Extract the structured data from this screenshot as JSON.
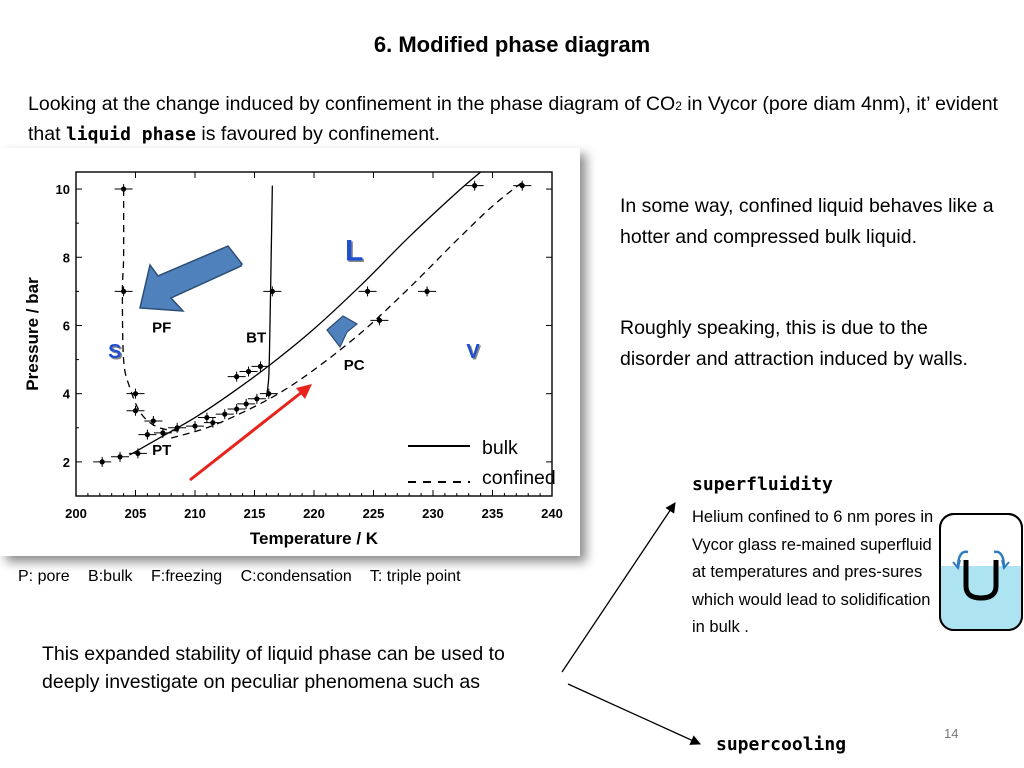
{
  "slide": {
    "title": "6. Modified phase diagram",
    "intro_before": "Looking at the change induced by confinement in the phase diagram of CO",
    "intro_sub": "2",
    "intro_mid": " in Vycor (pore diam 4nm), it’ evident that ",
    "intro_bold": "liquid phase",
    "intro_after": " is favoured by  confinement.",
    "right_para1": "In some way, confined liquid behaves like a hotter and compressed bulk liquid.",
    "right_para2": "Roughly speaking, this is due to the disorder and attraction induced by walls.",
    "bottom_para": "This expanded stability of liquid phase can be used to deeply investigate on peculiar phenomena such as",
    "superfluidity_title": "superfluidity",
    "superfluidity_text": "Helium confined to 6 nm pores in Vycor glass re-mained superfluid at temperatures and pres-sures which would lead to solidification in bulk .",
    "supercooling_title": "supercooling",
    "page_number": "14",
    "caption": [
      "P: pore",
      "B:bulk",
      "F:freezing",
      "C:condensation",
      "T: triple point"
    ]
  },
  "chart_data": {
    "type": "scatter",
    "xlabel": "Temperature / K",
    "ylabel": "Pressure / bar",
    "xlim": [
      200,
      240
    ],
    "ylim": [
      1,
      10.5
    ],
    "x_ticks": [
      200,
      205,
      210,
      215,
      220,
      225,
      230,
      235,
      240
    ],
    "y_ticks": [
      2,
      4,
      6,
      8,
      10
    ],
    "region_labels": [
      "S",
      "L",
      "V"
    ],
    "point_labels": [
      "PF",
      "BT",
      "PC",
      "PT"
    ],
    "legend": [
      "bulk",
      "confined"
    ],
    "series": [
      {
        "name": "bulk",
        "style": "solid",
        "points": [
          [
            204.5,
            2.2
          ],
          [
            207,
            2.7
          ],
          [
            210,
            3.3
          ],
          [
            213,
            4.0
          ],
          [
            216.5,
            4.9
          ],
          [
            220,
            5.9
          ],
          [
            224,
            7.2
          ],
          [
            228,
            8.6
          ],
          [
            232,
            9.9
          ],
          [
            234,
            10.5
          ]
        ]
      },
      {
        "name": "confined",
        "style": "dashed",
        "points": [
          [
            208,
            2.7
          ],
          [
            211,
            3.0
          ],
          [
            214,
            3.45
          ],
          [
            217,
            4.0
          ],
          [
            220,
            4.7
          ],
          [
            224,
            5.8
          ],
          [
            228,
            7.1
          ],
          [
            232,
            8.5
          ],
          [
            235,
            9.5
          ],
          [
            237.5,
            10.2
          ]
        ]
      },
      {
        "name": "PF",
        "style": "dashed",
        "points": [
          [
            204,
            10
          ],
          [
            204,
            8
          ],
          [
            203.9,
            7
          ],
          [
            204,
            5
          ],
          [
            204.5,
            4.2
          ],
          [
            205.5,
            3.4
          ],
          [
            207,
            3.0
          ],
          [
            209,
            2.9
          ]
        ]
      },
      {
        "name": "BT",
        "style": "solid",
        "points": [
          [
            216,
            3.9
          ],
          [
            216.2,
            4.5
          ],
          [
            216.3,
            6
          ],
          [
            216.4,
            8
          ],
          [
            216.5,
            10.1
          ]
        ]
      },
      {
        "name": "data",
        "points": [
          [
            202.2,
            2.0
          ],
          [
            203.7,
            2.15
          ],
          [
            205.2,
            2.25
          ],
          [
            206,
            2.8
          ],
          [
            207.3,
            2.85
          ],
          [
            208.5,
            3.0
          ],
          [
            210,
            3.05
          ],
          [
            211.5,
            3.15
          ],
          [
            212.5,
            3.4
          ],
          [
            213.5,
            3.55
          ],
          [
            214.3,
            3.7
          ],
          [
            215.2,
            3.85
          ],
          [
            216.2,
            4.0
          ],
          [
            213.5,
            4.5
          ],
          [
            214.5,
            4.65
          ],
          [
            215.5,
            4.8
          ],
          [
            204,
            7.0
          ],
          [
            204,
            10.0
          ],
          [
            205,
            4.0
          ],
          [
            205,
            3.5
          ],
          [
            206.5,
            3.2
          ],
          [
            211,
            3.3
          ],
          [
            216.5,
            7.0
          ],
          [
            224.5,
            7.0
          ],
          [
            229.5,
            7.0
          ],
          [
            225.5,
            6.15
          ],
          [
            233.5,
            10.1
          ],
          [
            237.5,
            10.1
          ]
        ]
      }
    ]
  },
  "colors": {
    "left_arrow_fill": "#4f81bd",
    "left_arrow_stroke": "#2c4d75",
    "red_arrow": "#e8231c",
    "region_label": "#1f4fd1",
    "water": "#aee4f1"
  },
  "icons": {
    "superfluid_beaker": "u-tube-beaker-icon"
  }
}
